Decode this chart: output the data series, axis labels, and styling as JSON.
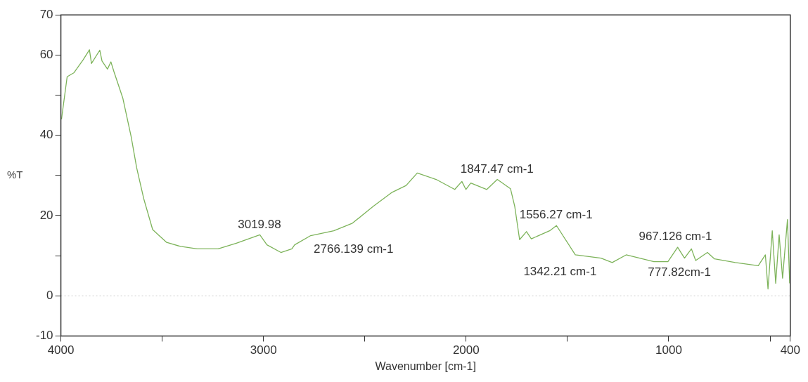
{
  "chart_data": {
    "type": "line",
    "xlabel": "Wavenumber [cm-1]",
    "ylabel": "%T",
    "x": [
      3997,
      3969,
      3935,
      3890,
      3859,
      3849,
      3808,
      3797,
      3770,
      3753,
      3739,
      3694,
      3653,
      3626,
      3591,
      3547,
      3478,
      3409,
      3327,
      3224,
      3134,
      3018,
      2983,
      2914,
      2860,
      2846,
      2767,
      2653,
      2561,
      2458,
      2365,
      2296,
      2241,
      2148,
      2056,
      2021,
      2001,
      1977,
      1898,
      1846,
      1781,
      1760,
      1736,
      1702,
      1678,
      1588,
      1554,
      1461,
      1334,
      1279,
      1210,
      1073,
      1004,
      956,
      922,
      888,
      867,
      809,
      774,
      671,
      558,
      523,
      510,
      489,
      472,
      455,
      438,
      414,
      403
    ],
    "series": [
      {
        "color": "#7db35a",
        "values": [
          44,
          54.6,
          55.6,
          58.8,
          61.3,
          57.9,
          61.2,
          58.5,
          56.5,
          58.3,
          56,
          49.2,
          39.6,
          31.9,
          24.2,
          16.5,
          13.3,
          12.3,
          11.7,
          11.7,
          13.1,
          15.2,
          12.7,
          10.8,
          11.7,
          12.7,
          15,
          16.2,
          18.1,
          22.3,
          25.8,
          27.5,
          30.6,
          29,
          26.5,
          28.5,
          26.5,
          28.1,
          26.5,
          29,
          26.7,
          22.3,
          14,
          16,
          14.2,
          16.2,
          17.5,
          10.2,
          9.4,
          8.3,
          10.2,
          8.5,
          8.5,
          12.1,
          9.4,
          11.7,
          8.8,
          10.8,
          9.2,
          8.3,
          7.5,
          10.2,
          1.7,
          16.2,
          3.1,
          15.2,
          4.4,
          19,
          3.1
        ]
      }
    ],
    "xlim": [
      4000,
      400
    ],
    "xticks": [
      4000,
      {
        "value": 3500,
        "label": null
      },
      3000,
      {
        "value": 2500,
        "label": null
      },
      2000,
      {
        "value": 1500,
        "label": null
      },
      1000,
      {
        "value": 500,
        "label": null
      },
      400
    ],
    "ylim": [
      -10,
      70
    ],
    "yticks": [
      -10,
      0,
      {
        "value": 10,
        "label": null
      },
      20,
      {
        "value": 30,
        "label": null
      },
      40,
      {
        "value": 50,
        "label": null
      },
      60,
      70
    ],
    "grid": false,
    "legend": false,
    "marker": "none",
    "line_style": "solid",
    "ref_lines": [
      {
        "axis": "y",
        "value": 0,
        "color": "#cccccc",
        "line_style": "dotted"
      }
    ],
    "annotations": [
      {
        "text": "3019.98",
        "x": 3019.98,
        "y": 15.2
      },
      {
        "text": "2766.139 cm-1",
        "x": 2766.139,
        "y": 15
      },
      {
        "text": "1847.47 cm-1",
        "x": 1847.47,
        "y": 29
      },
      {
        "text": "1556.27 cm-1",
        "x": 1556.27,
        "y": 17.5
      },
      {
        "text": "1342.21 cm-1",
        "x": 1342.21,
        "y": 9.4
      },
      {
        "text": "967.126 cm-1",
        "x": 967.126,
        "y": 12.1
      },
      {
        "text": "777.82cm-1",
        "x": 777.82,
        "y": 9.2
      }
    ]
  }
}
